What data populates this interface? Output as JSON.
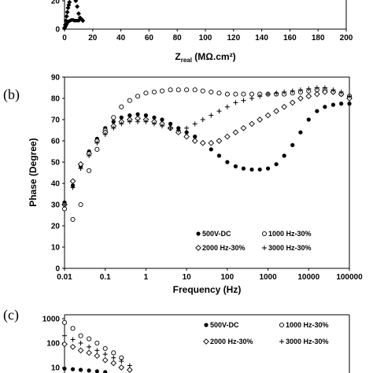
{
  "panel_labels": [
    "(b)",
    "(c)"
  ],
  "top_axis": {
    "xlabel_main": "Z",
    "xlabel_sub": "real",
    "xlabel_unit": " (MΩ.cm²)",
    "x_ticks": [
      "0",
      "20",
      "40",
      "60",
      "80",
      "100",
      "120",
      "140",
      "160",
      "180",
      "200"
    ],
    "y_ticks": [
      "0",
      "20"
    ]
  },
  "chart_data": [
    {
      "type": "scatter",
      "panel": "a",
      "xlim": [
        0,
        200
      ],
      "ylim": [
        0,
        25
      ],
      "series": [
        {
          "marker": "diamond",
          "x": [
            0,
            0.5,
            1,
            1.5,
            2,
            2.5,
            3,
            3.5,
            4,
            5,
            6,
            7,
            8,
            9,
            10,
            11,
            12,
            13
          ],
          "y": [
            1,
            3,
            6,
            9,
            12,
            15,
            17,
            19,
            21,
            22,
            23,
            22,
            20,
            16,
            11,
            8,
            7,
            6
          ]
        },
        {
          "marker": "circle",
          "x": [
            0,
            0.5,
            1,
            1.5,
            2,
            3,
            4,
            5,
            6,
            7,
            8,
            9,
            10
          ],
          "y": [
            0.5,
            1.5,
            2.5,
            3.5,
            4.5,
            5.5,
            6,
            6.5,
            6.5,
            6,
            6,
            6,
            6
          ]
        }
      ]
    },
    {
      "type": "scatter",
      "panel": "b",
      "xscale": "log",
      "xlim": [
        0.01,
        100000
      ],
      "ylim": [
        0,
        90
      ],
      "xlabel": "Frequency (Hz)",
      "ylabel": "Phase (Degree)",
      "x_ticks": [
        "0.01",
        "0.1",
        "1",
        "10",
        "100",
        "1000",
        "10000",
        "100000"
      ],
      "y_ticks": [
        "0",
        "10",
        "20",
        "30",
        "40",
        "50",
        "60",
        "70",
        "80",
        "90"
      ],
      "series": [
        {
          "name": "500V-DC",
          "marker": "filled-circle",
          "x": [
            0.01,
            0.016,
            0.025,
            0.04,
            0.063,
            0.1,
            0.16,
            0.25,
            0.4,
            0.63,
            1,
            1.6,
            2.5,
            4,
            6.3,
            10,
            16,
            25,
            40,
            63,
            100,
            160,
            250,
            400,
            630,
            1000,
            1600,
            2500,
            4000,
            6300,
            10000,
            16000,
            25000,
            40000,
            63000,
            100000
          ],
          "y": [
            31,
            39,
            48,
            55,
            61,
            66,
            69,
            71,
            72,
            72.5,
            72,
            71,
            70,
            68,
            66,
            64,
            62,
            59,
            56,
            53,
            50,
            48,
            47,
            46.5,
            46.5,
            47,
            49,
            53,
            58,
            64,
            70,
            74,
            76,
            77,
            77.5,
            77.5
          ]
        },
        {
          "name": "1000 Hz-30%",
          "marker": "open-circle",
          "x": [
            0.01,
            0.016,
            0.025,
            0.04,
            0.063,
            0.1,
            0.16,
            0.25,
            0.4,
            0.63,
            1,
            1.6,
            2.5,
            4,
            6.3,
            10,
            16,
            25,
            40,
            63,
            100,
            160,
            250,
            400,
            630,
            1000,
            1600,
            2500,
            4000,
            6300,
            10000,
            16000,
            25000,
            40000,
            63000,
            100000
          ],
          "y": [
            28,
            23,
            30,
            46,
            56,
            65,
            71,
            76,
            79,
            81,
            82.5,
            83,
            83.5,
            84,
            84,
            84,
            84,
            83.5,
            83,
            82.5,
            82,
            82,
            82,
            82,
            82,
            82,
            82,
            82,
            82.5,
            83,
            83.5,
            84,
            84,
            83,
            82,
            81
          ]
        },
        {
          "name": "2000 Hz-30%",
          "marker": "open-diamond",
          "x": [
            0.01,
            0.016,
            0.025,
            0.04,
            0.063,
            0.1,
            0.16,
            0.25,
            0.4,
            0.63,
            1,
            1.6,
            2.5,
            4,
            6.3,
            10,
            16,
            25,
            40,
            63,
            100,
            160,
            250,
            400,
            630,
            1000,
            1600,
            2500,
            4000,
            6300,
            10000,
            16000,
            25000,
            40000,
            63000,
            100000
          ],
          "y": [
            30,
            41,
            49,
            54,
            60,
            64,
            67,
            69,
            70,
            70.5,
            70,
            69,
            68,
            66,
            64,
            62,
            60,
            59,
            59,
            60,
            62,
            64,
            66,
            68,
            70,
            72,
            74,
            76,
            78,
            80,
            81,
            82,
            83,
            83,
            82,
            80
          ]
        },
        {
          "name": "3000 Hz-30%",
          "marker": "plus",
          "x": [
            0.01,
            0.016,
            0.025,
            0.04,
            0.063,
            0.1,
            0.16,
            0.25,
            0.4,
            0.63,
            1,
            1.6,
            2.5,
            4,
            6.3,
            10,
            16,
            25,
            40,
            63,
            100,
            160,
            250,
            400,
            630,
            1000,
            1600,
            2500,
            4000,
            6300,
            10000,
            16000,
            25000,
            40000,
            63000,
            100000
          ],
          "y": [
            30,
            38,
            47,
            53,
            59,
            63,
            66,
            68,
            69,
            69,
            69,
            68,
            67,
            66,
            65,
            66,
            68,
            70,
            72,
            74,
            76,
            78,
            79,
            80,
            81,
            82,
            82.5,
            83,
            83.5,
            84,
            84.5,
            85,
            85,
            84,
            83,
            81
          ]
        }
      ]
    },
    {
      "type": "scatter",
      "panel": "c",
      "yscale": "log",
      "y_ticks": [
        "1000",
        "100",
        "10"
      ],
      "legend": [
        "500V-DC",
        "1000 Hz-30%",
        "2000 Hz-30%",
        "3000 Hz-30%"
      ],
      "series": [
        {
          "name": "500V-DC",
          "marker": "filled-circle",
          "x": [
            0.01,
            0.016,
            0.025,
            0.04,
            0.063,
            0.1
          ],
          "y": [
            9,
            8.5,
            8,
            7.5,
            7,
            6.5
          ]
        },
        {
          "name": "1000 Hz-30%",
          "marker": "open-circle",
          "x": [
            0.01,
            0.016,
            0.025,
            0.04,
            0.063,
            0.1,
            0.16,
            0.25
          ],
          "y": [
            700,
            400,
            200,
            150,
            100,
            60,
            40,
            25
          ]
        },
        {
          "name": "2000 Hz-30%",
          "marker": "open-diamond",
          "x": [
            0.01,
            0.016,
            0.025,
            0.04,
            0.063,
            0.1,
            0.16,
            0.25,
            0.4
          ],
          "y": [
            90,
            70,
            50,
            40,
            30,
            20,
            15,
            10,
            8
          ]
        },
        {
          "name": "3000 Hz-30%",
          "marker": "plus",
          "x": [
            0.01,
            0.016,
            0.025,
            0.04,
            0.063,
            0.1,
            0.16,
            0.25,
            0.4
          ],
          "y": [
            200,
            140,
            100,
            70,
            50,
            35,
            25,
            18,
            12
          ]
        }
      ]
    }
  ]
}
